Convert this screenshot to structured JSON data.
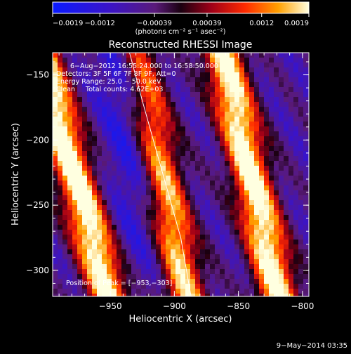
{
  "chart_data": {
    "type": "heatmap",
    "title": "Reconstructed RHESSI Image",
    "xlabel": "Heliocentric X (arcsec)",
    "ylabel": "Heliocentric Y (arcsec)",
    "xlim": [
      -995,
      -795
    ],
    "ylim": [
      -320,
      -133
    ],
    "xticks": [
      -950,
      -900,
      -850,
      -800
    ],
    "xtick_labels": [
      "−950",
      "−900",
      "−850",
      "−800"
    ],
    "yticks": [
      -150,
      -200,
      -250,
      -300
    ],
    "ytick_labels": [
      "−150",
      "−200",
      "−250",
      "−300"
    ],
    "colorbar": {
      "range": [
        -0.0019,
        0.0019
      ],
      "ticks": [
        -0.0019,
        -0.0012,
        -0.00039,
        0.00039,
        0.0012,
        0.0019
      ],
      "tick_labels": [
        "−0.0019",
        "−0.0012",
        "−0.00039",
        "0.00039",
        "0.0012",
        "0.0019"
      ],
      "unit_label": "(photons cm⁻² s⁻¹ asec⁻²)",
      "colormap": "RHESSI blue-purple-red-yellow-white"
    },
    "annotations": [
      "6−Aug−2012 16:55:24.000 to 16:58:50.000",
      "Detectors: 3F 5F 6F 7F 8F 9F, Att=0",
      "Energy Range: 25.0 − 50.0 keV",
      "Clean     Total counts: 4.62E+03"
    ],
    "peak_text": "Position of Peak = [−953,−303]",
    "peak": [
      -953,
      -303
    ],
    "limb_line": [
      [
        -935,
        -133
      ],
      [
        -925,
        -170
      ],
      [
        -915,
        -205
      ],
      [
        -905,
        -240
      ],
      [
        -895,
        -275
      ],
      [
        -887,
        -320
      ]
    ],
    "bands": [
      {
        "name": "band-1",
        "x_at_top": -1005,
        "x_at_bottom": -950,
        "peak": 0.95
      },
      {
        "name": "band-2",
        "x_at_top": -928,
        "x_at_bottom": -890,
        "peak": 0.7
      },
      {
        "name": "band-3",
        "x_at_top": -862,
        "x_at_bottom": -818,
        "peak": 0.9
      },
      {
        "name": "blue-hole",
        "x_at_top": -935,
        "x_at_bottom": -925,
        "peak": -0.8
      }
    ]
  },
  "footer": {
    "date": "9−May−2014 03:35"
  }
}
